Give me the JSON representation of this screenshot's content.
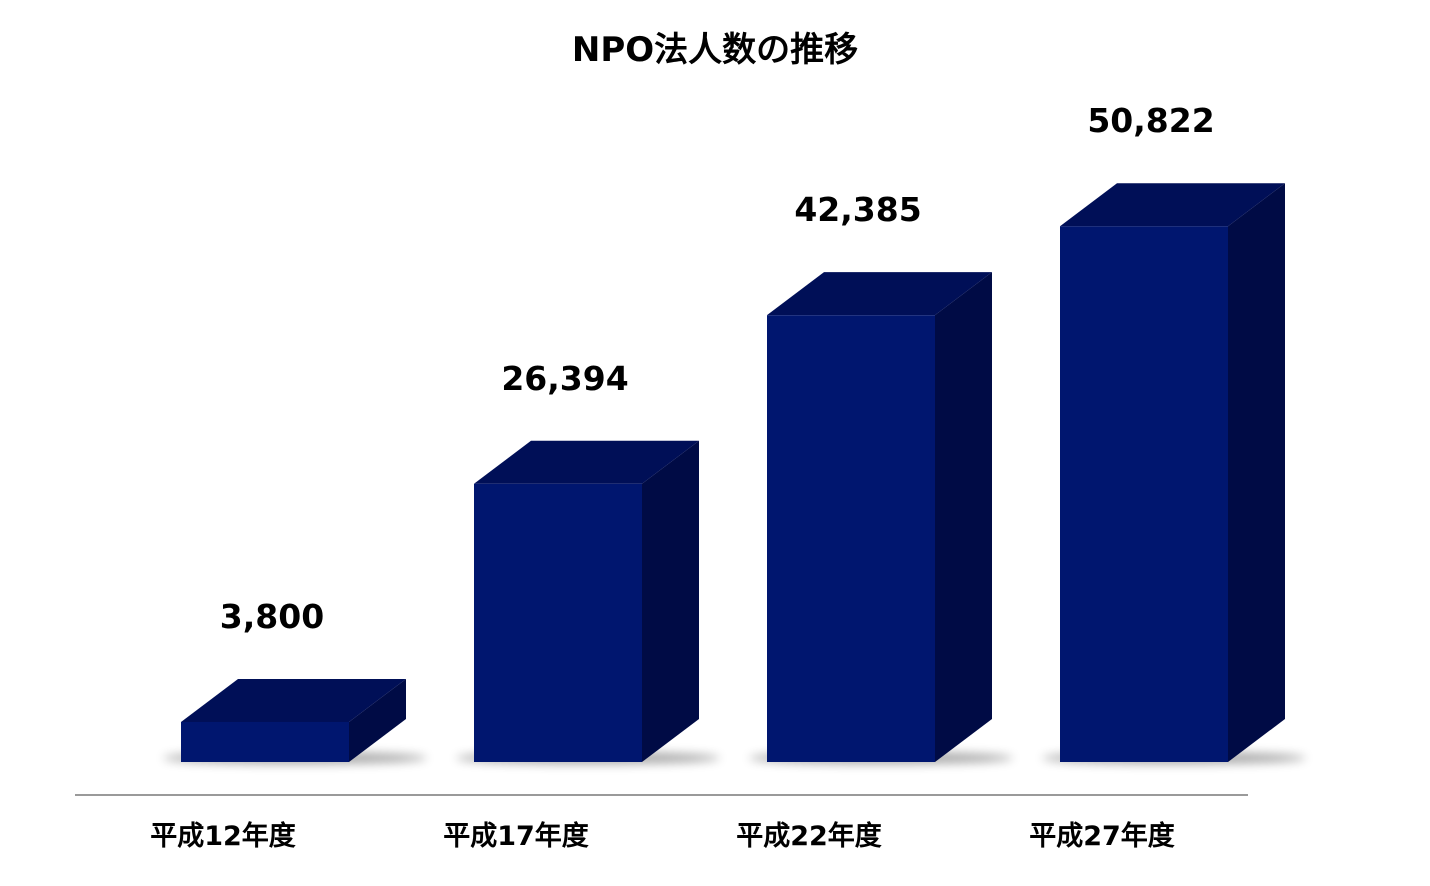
{
  "chart_data": {
    "type": "bar",
    "title": "NPO法人数の推移",
    "categories": [
      "平成12年度",
      "平成17年度",
      "平成22年度",
      "平成27年度"
    ],
    "values": [
      3800,
      26394,
      42385,
      50822
    ],
    "value_labels": [
      "3,800",
      "26,394",
      "42,385",
      "50,822"
    ],
    "xlabel": "",
    "ylabel": "",
    "ylim": [
      0,
      56000
    ],
    "grid": false,
    "legend": "none",
    "style": "3d-column",
    "colors": {
      "front": "#00166F",
      "top": "#000F57",
      "side": "#000B45",
      "axis": "#9A9A9A"
    }
  }
}
